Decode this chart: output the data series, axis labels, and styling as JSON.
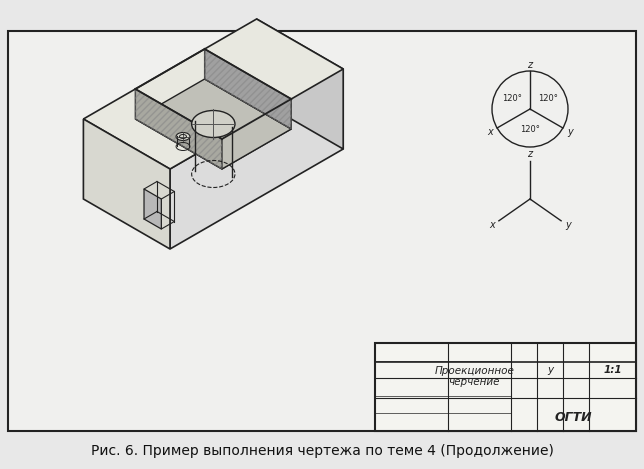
{
  "bg_color": "#e8e8e8",
  "drawing_bg": "#f0f0ee",
  "border_color": "#333333",
  "title_text": "Рис. 6. Пример выполнения чертежа по теме 4 (Продолжение)",
  "title_fontsize": 10,
  "stamp_title": "Проекционное\nчерчение",
  "stamp_org": "ОГТИ",
  "stamp_scale": "1:1",
  "stamp_subject": "у",
  "axon1_label_x": "x",
  "axon1_label_y": "y",
  "axon1_label_z": "z",
  "axon1_angles": [
    "120°",
    "120°",
    "120°"
  ],
  "axon2_label_x": "x",
  "axon2_label_y": "y",
  "axon2_label_z": "z",
  "hatch_color": "#888888",
  "line_color": "#222222",
  "light_line": "#555555"
}
